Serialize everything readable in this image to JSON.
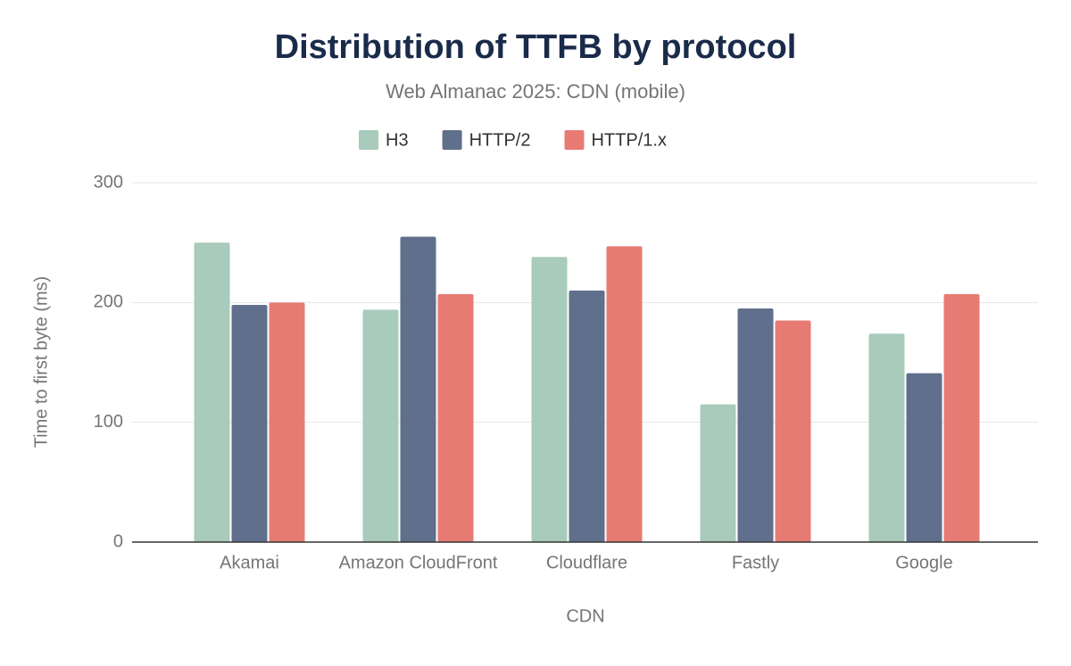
{
  "chart_data": {
    "type": "bar",
    "title": "Distribution of TTFB by protocol",
    "subtitle": "Web Almanac 2025: CDN (mobile)",
    "x_label": "CDN",
    "y_label": "Time to first byte (ms)",
    "categories": [
      "Akamai",
      "Amazon CloudFront",
      "Cloudflare",
      "Fastly",
      "Google"
    ],
    "series": [
      {
        "name": "H3",
        "color": "#a8cbbb",
        "values": [
          250,
          194,
          238,
          115,
          174
        ]
      },
      {
        "name": "HTTP/2",
        "color": "#5f6f8c",
        "values": [
          198,
          255,
          210,
          195,
          141
        ]
      },
      {
        "name": "HTTP/1.x",
        "color": "#e77b73",
        "values": [
          200,
          207,
          247,
          185,
          207
        ]
      }
    ],
    "ylim": [
      0,
      300
    ],
    "yticks": [
      0,
      100,
      200,
      300
    ],
    "grid": true,
    "legend": "top"
  }
}
